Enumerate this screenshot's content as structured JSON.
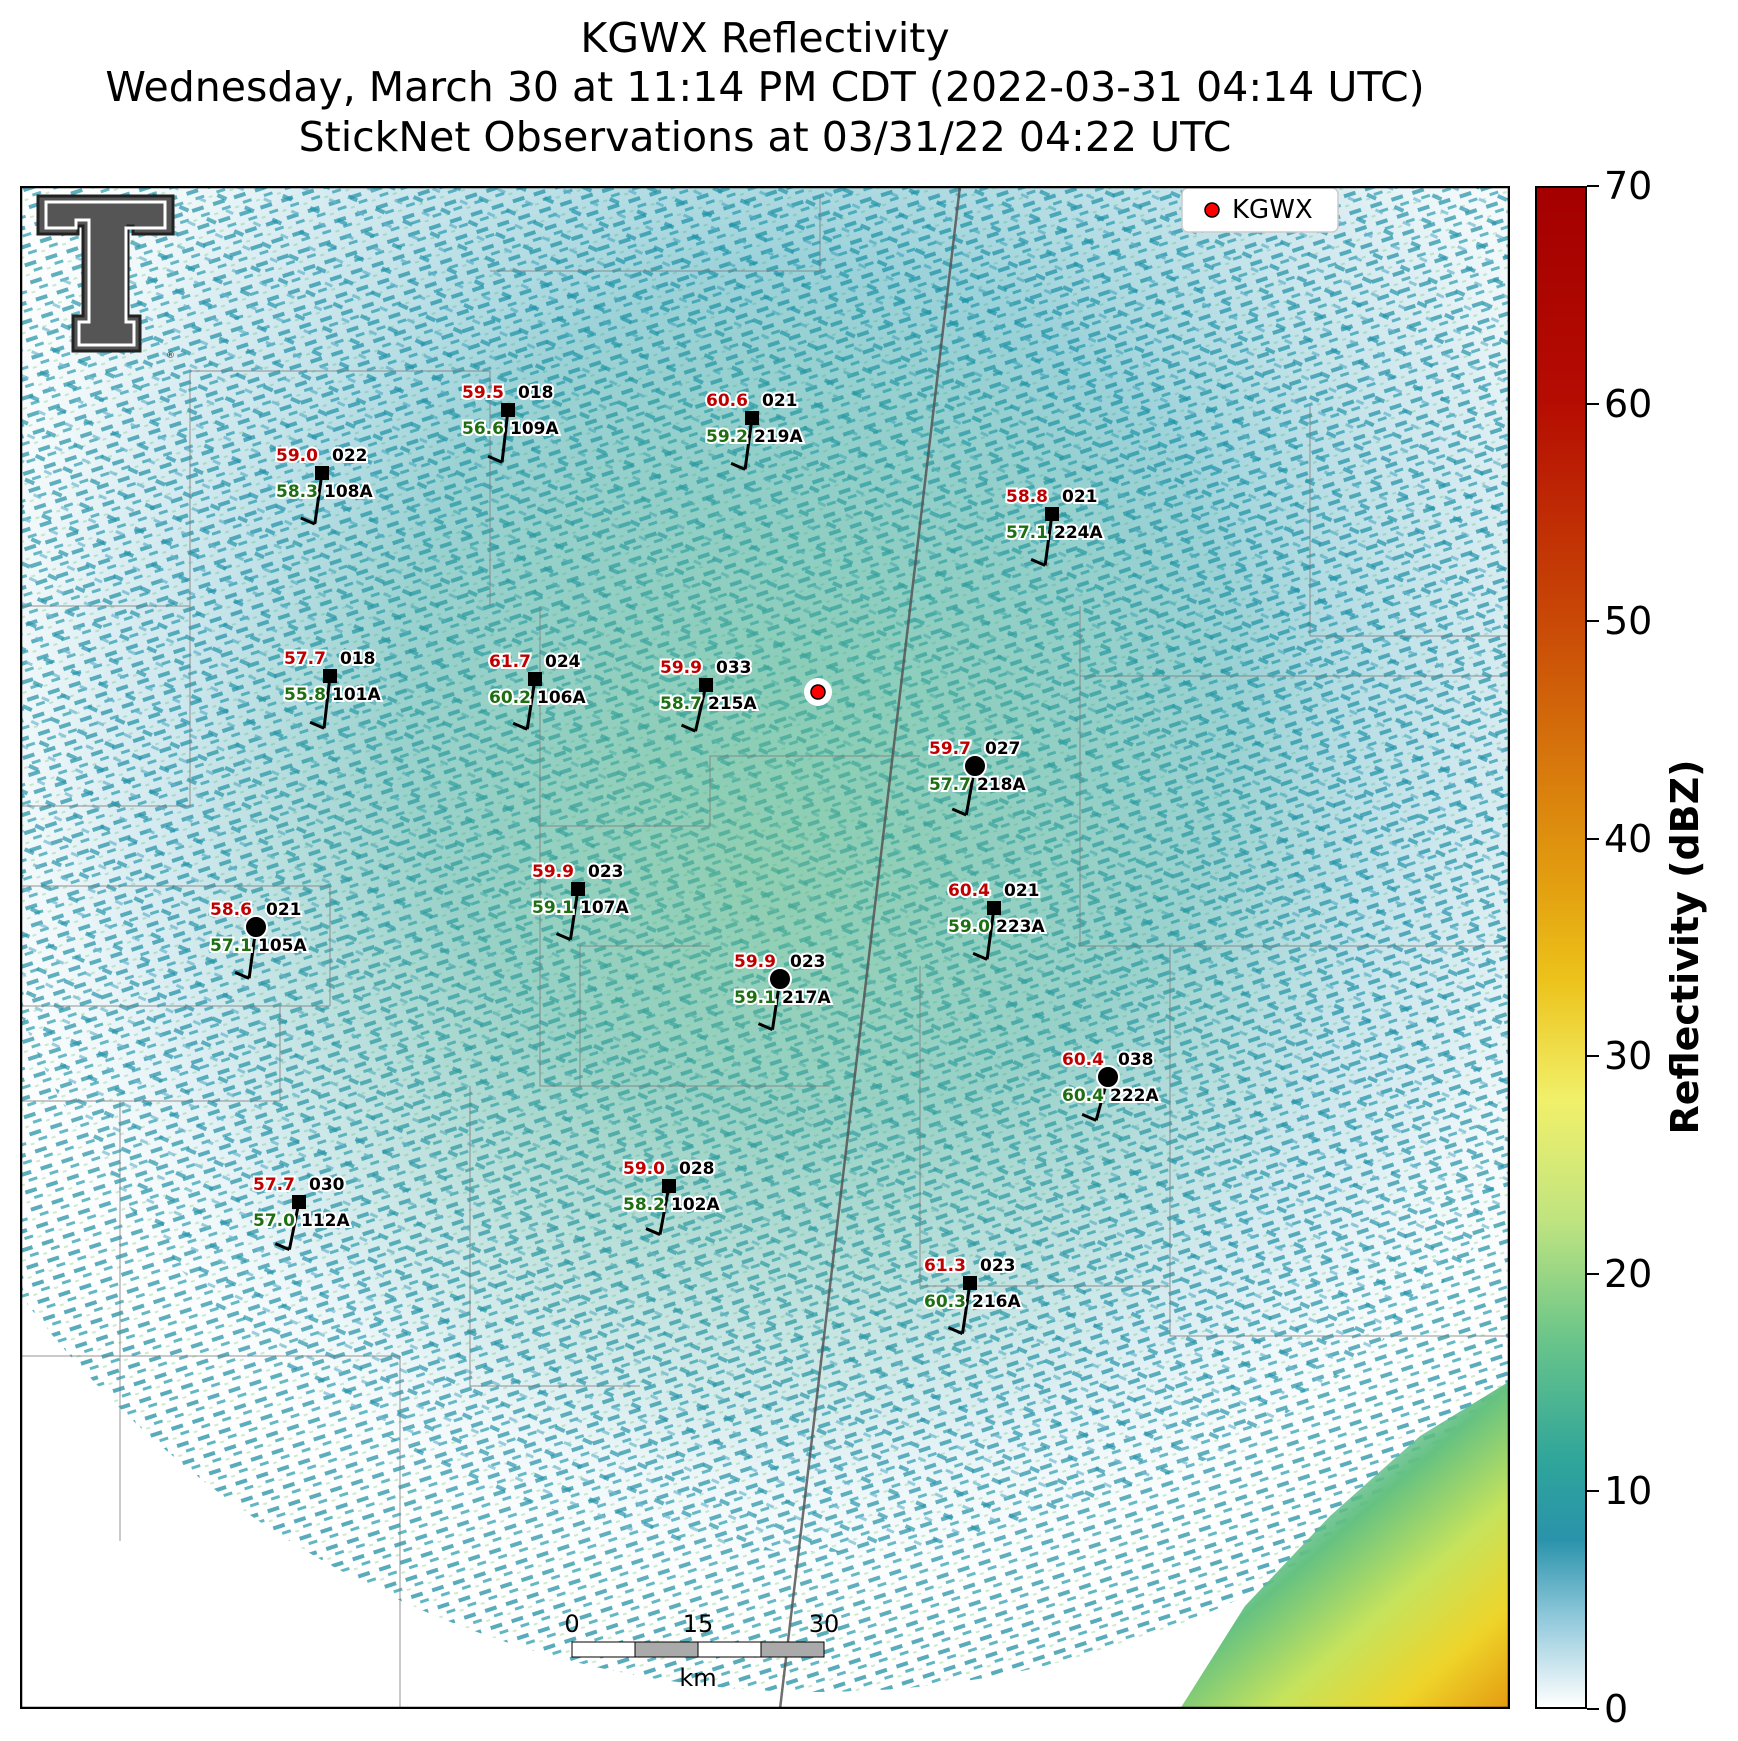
{
  "title": {
    "line1": "KGWX Reflectivity",
    "line2": "Wednesday, March 30 at 11:14 PM CDT (2022-03-31 04:14 UTC)",
    "line3": "StickNet Observations at 03/31/22 04:22 UTC"
  },
  "legend": {
    "label": "KGWX",
    "marker_color": "#ff0000"
  },
  "radar": {
    "name": "KGWX"
  },
  "colorbar": {
    "label": "Reflectivity (dBZ)",
    "ticks": [
      "0",
      "10",
      "20",
      "30",
      "40",
      "50",
      "60",
      "70"
    ],
    "range": [
      0,
      70
    ]
  },
  "scalebar": {
    "ticks": [
      "0",
      "15",
      "30"
    ],
    "unit": "km"
  },
  "logo": {
    "name": "texas-tech-double-t-logo"
  },
  "stations": [
    {
      "id": "109A",
      "temp": "59.5",
      "dew": "56.6",
      "dir": "018",
      "marker": "square"
    },
    {
      "id": "219A",
      "temp": "60.6",
      "dew": "59.2",
      "dir": "021",
      "marker": "square"
    },
    {
      "id": "108A",
      "temp": "59.0",
      "dew": "58.3",
      "dir": "022",
      "marker": "square"
    },
    {
      "id": "224A",
      "temp": "58.8",
      "dew": "57.1",
      "dir": "021",
      "marker": "square"
    },
    {
      "id": "101A",
      "temp": "57.7",
      "dew": "55.8",
      "dir": "018",
      "marker": "square"
    },
    {
      "id": "106A",
      "temp": "61.7",
      "dew": "60.2",
      "dir": "024",
      "marker": "square"
    },
    {
      "id": "215A",
      "temp": "59.9",
      "dew": "58.7",
      "dir": "033",
      "marker": "square"
    },
    {
      "id": "218A",
      "temp": "59.7",
      "dew": "57.7",
      "dir": "027",
      "marker": "circle"
    },
    {
      "id": "223A",
      "temp": "60.4",
      "dew": "59.0",
      "dir": "021",
      "marker": "square"
    },
    {
      "id": "107A",
      "temp": "59.9",
      "dew": "59.1",
      "dir": "023",
      "marker": "square"
    },
    {
      "id": "105A",
      "temp": "58.6",
      "dew": "57.1",
      "dir": "021",
      "marker": "circle"
    },
    {
      "id": "217A",
      "temp": "59.9",
      "dew": "59.1",
      "dir": "023",
      "marker": "circle"
    },
    {
      "id": "222A",
      "temp": "60.4",
      "dew": "60.4",
      "dir": "038",
      "marker": "circle"
    },
    {
      "id": "112A",
      "temp": "57.7",
      "dew": "57.0",
      "dir": "030",
      "marker": "square"
    },
    {
      "id": "102A",
      "temp": "59.0",
      "dew": "58.2",
      "dir": "028",
      "marker": "square"
    },
    {
      "id": "216A",
      "temp": "61.3",
      "dew": "60.3",
      "dir": "023",
      "marker": "square"
    }
  ]
}
